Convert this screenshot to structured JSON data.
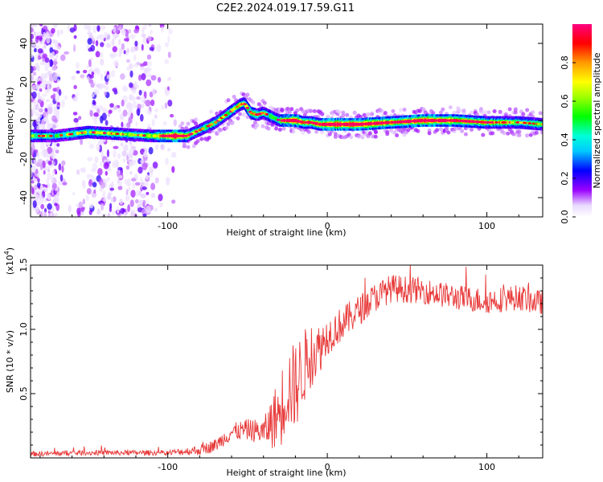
{
  "title": "C2E2.2024.019.17.59.G11",
  "colorbar": {
    "label": "Normalized spectral amplitude",
    "ticks": [
      "0.0",
      "0.2",
      "0.4",
      "0.6",
      "0.8"
    ],
    "tick_values": [
      0.0,
      0.2,
      0.4,
      0.6,
      0.8
    ],
    "range": [
      0,
      1
    ]
  },
  "chart_data": [
    {
      "type": "heatmap",
      "xlabel": "Height of straight line (km)",
      "ylabel": "Frequency (Hz)",
      "xlim": [
        -186,
        135
      ],
      "ylim": [
        -50,
        50
      ],
      "x_ticks": [
        -100,
        0,
        100
      ],
      "x_tick_labels": [
        "-100",
        "0",
        "100"
      ],
      "y_ticks": [
        -40,
        -20,
        0,
        20,
        40
      ],
      "y_tick_labels": [
        "-40",
        "-20",
        "0",
        "20",
        "40"
      ],
      "ridge": {
        "x": [
          -186,
          -170,
          -150,
          -130,
          -110,
          -95,
          -88,
          -80,
          -70,
          -60,
          -55,
          -52,
          -48,
          -44,
          -40,
          -35,
          -30,
          -25,
          -20,
          -15,
          -10,
          -5,
          0,
          20,
          40,
          60,
          80,
          100,
          120,
          135
        ],
        "y": [
          -8,
          -8,
          -6,
          -7,
          -8,
          -8,
          -8,
          -5,
          -1,
          5,
          8,
          9,
          4,
          3,
          4,
          2,
          0,
          0,
          0,
          -1,
          -1,
          -2,
          -2,
          -2,
          -1,
          0,
          0,
          -1,
          -1,
          -2
        ],
        "amplitude": [
          0.5,
          0.45,
          0.55,
          0.5,
          0.5,
          0.9,
          0.6,
          0.45,
          0.5,
          0.5,
          0.55,
          0.5,
          0.6,
          0.55,
          0.5,
          0.5,
          0.55,
          0.75,
          0.9,
          0.7,
          0.65,
          0.7,
          0.85,
          0.9,
          0.7,
          0.85,
          0.75,
          0.6,
          0.5,
          0.5
        ]
      },
      "noise_region_x": [
        -186,
        -95
      ]
    },
    {
      "type": "line",
      "xlabel": "Height of straight line (km)",
      "ylabel": "SNR (10 * v/v)",
      "y_exponent_label": "(x10",
      "y_exponent_power": "4",
      "y_exponent_close": ")",
      "xlim": [
        -186,
        135
      ],
      "ylim": [
        0,
        1.5
      ],
      "x_ticks": [
        -100,
        0,
        100
      ],
      "x_tick_labels": [
        "-100",
        "0",
        "100"
      ],
      "y_ticks": [
        0.5,
        1.0,
        1.5
      ],
      "y_tick_labels": [
        "0.5",
        "1.0",
        "1.5"
      ],
      "series": [
        {
          "color": "#e83a3a",
          "trend": {
            "x": [
              -186,
              -150,
              -100,
              -80,
              -70,
              -60,
              -50,
              -40,
              -30,
              -25,
              -20,
              -15,
              -10,
              -5,
              0,
              10,
              20,
              30,
              40,
              60,
              80,
              100,
              120,
              135
            ],
            "y": [
              0.03,
              0.04,
              0.04,
              0.06,
              0.1,
              0.2,
              0.22,
              0.2,
              0.35,
              0.55,
              0.55,
              0.7,
              0.8,
              0.85,
              0.95,
              1.05,
              1.15,
              1.25,
              1.32,
              1.3,
              1.25,
              1.22,
              1.25,
              1.2
            ]
          },
          "noise_amplitude": {
            "x": [
              -186,
              -100,
              -70,
              -40,
              -30,
              -20,
              -10,
              0,
              20,
              60,
              135
            ],
            "y": [
              0.02,
              0.02,
              0.05,
              0.1,
              0.3,
              0.35,
              0.25,
              0.15,
              0.12,
              0.1,
              0.1
            ]
          }
        }
      ]
    }
  ]
}
